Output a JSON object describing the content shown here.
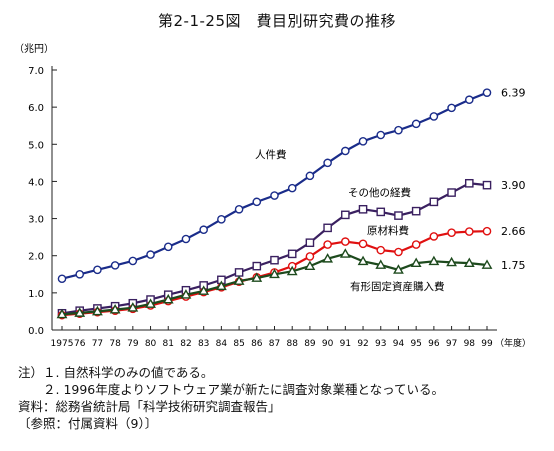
{
  "chart_data": {
    "type": "line",
    "title": "第2-1-25図　費目別研究費の推移",
    "ylabel": "（兆円）",
    "xlabel": "（年度）",
    "ylim": [
      0,
      7
    ],
    "y_ticks": [
      "0.0",
      "1.0",
      "2.0",
      "3.0",
      "4.0",
      "5.0",
      "6.0",
      "7.0"
    ],
    "categories": [
      "1975",
      "76",
      "77",
      "78",
      "79",
      "80",
      "81",
      "82",
      "83",
      "84",
      "85",
      "86",
      "87",
      "88",
      "89",
      "90",
      "91",
      "92",
      "93",
      "94",
      "95",
      "96",
      "97",
      "98",
      "99"
    ],
    "grid": false,
    "series": [
      {
        "name": "人件費",
        "marker": "circle",
        "color": "#1a2c8a",
        "end_label": "6.39",
        "values": [
          1.38,
          1.5,
          1.62,
          1.74,
          1.86,
          2.03,
          2.24,
          2.45,
          2.7,
          2.98,
          3.25,
          3.45,
          3.62,
          3.82,
          4.15,
          4.5,
          4.82,
          5.08,
          5.25,
          5.38,
          5.55,
          5.75,
          5.98,
          6.2,
          6.39
        ]
      },
      {
        "name": "その他の経費",
        "marker": "square",
        "color": "#3a2060",
        "end_label": "3.90",
        "values": [
          0.45,
          0.52,
          0.58,
          0.64,
          0.72,
          0.82,
          0.95,
          1.07,
          1.2,
          1.35,
          1.55,
          1.72,
          1.88,
          2.05,
          2.35,
          2.75,
          3.1,
          3.25,
          3.18,
          3.08,
          3.2,
          3.45,
          3.7,
          3.95,
          3.9
        ]
      },
      {
        "name": "原材料費",
        "marker": "circle",
        "color": "#e01010",
        "end_label": "2.66",
        "values": [
          0.4,
          0.44,
          0.48,
          0.52,
          0.57,
          0.66,
          0.78,
          0.9,
          1.02,
          1.15,
          1.3,
          1.42,
          1.55,
          1.72,
          1.98,
          2.3,
          2.38,
          2.32,
          2.15,
          2.1,
          2.3,
          2.52,
          2.62,
          2.65,
          2.66
        ]
      },
      {
        "name": "有形固定資産購入費",
        "marker": "triangle",
        "color": "#1d4a1d",
        "end_label": "1.75",
        "values": [
          0.42,
          0.46,
          0.5,
          0.55,
          0.6,
          0.7,
          0.82,
          0.95,
          1.05,
          1.18,
          1.32,
          1.4,
          1.5,
          1.58,
          1.72,
          1.92,
          2.05,
          1.85,
          1.75,
          1.62,
          1.8,
          1.85,
          1.82,
          1.8,
          1.75
        ]
      }
    ],
    "annotations": [
      {
        "text": "人件費",
        "series": 0
      },
      {
        "text": "その他の経費",
        "series": 1
      },
      {
        "text": "原材料費",
        "series": 2
      },
      {
        "text": "有形固定資産購入費",
        "series": 3
      }
    ]
  },
  "notes": [
    "注）１. 自然科学のみの値である。",
    "　　２. 1996年度よりソフトウェア業が新たに調査対象業種となっている。",
    "資料：総務省統計局「科学技術研究調査報告」",
    "〔参照：付属資料（9）〕"
  ]
}
